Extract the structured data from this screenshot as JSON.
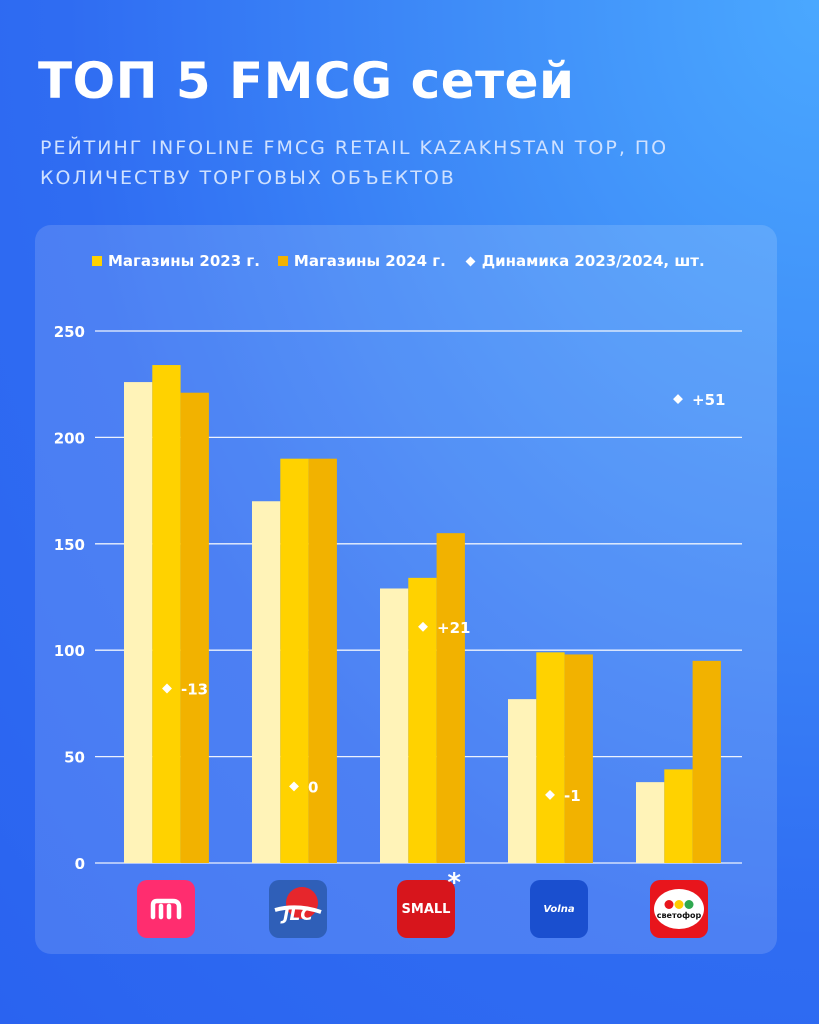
{
  "header": {
    "title": "ТОП 5 FMCG сетей",
    "subtitle": "РЕЙТИНГ INFOLINE FMCG RETAIL KAZAKHSTAN TOP, ПО КОЛИЧЕСТВУ ТОРГОВЫХ ОБЪЕКТОВ"
  },
  "colors": {
    "series_2023": "#fff3b8",
    "series_2024a": "#ffd200",
    "series_2024b": "#f2b200",
    "gridline": "#ffffff"
  },
  "chart_data": {
    "type": "bar",
    "categories": [
      "magnum",
      "JLC",
      "SMALL",
      "Volna",
      "светофор"
    ],
    "series": [
      {
        "name": "",
        "values": [
          226,
          170,
          129,
          77,
          38
        ]
      },
      {
        "name": "Магазины 2023 г.",
        "values": [
          234,
          190,
          134,
          99,
          44
        ]
      },
      {
        "name": "Магазины 2024 г.",
        "values": [
          221,
          190,
          155,
          98,
          95
        ]
      }
    ],
    "dynamics": {
      "name": "Динамика 2023/2024, шт.",
      "labels": [
        "-13",
        "0",
        "+21",
        "-1",
        "+51"
      ],
      "y": [
        82,
        36,
        111,
        32,
        218
      ]
    },
    "yticks": [
      0,
      50,
      100,
      150,
      200,
      250
    ],
    "ylim": [
      0,
      250
    ],
    "grid": true,
    "legend": "top"
  },
  "logos": [
    {
      "icon": "magnum-logo-icon",
      "text": "m",
      "bg": "#ff2d6f"
    },
    {
      "icon": "jlc-logo-icon",
      "text": "JLC",
      "bg": "#2f5fb8"
    },
    {
      "icon": "small-logo-icon",
      "text": "SMALL",
      "bg": "#d7151c",
      "mark": "*"
    },
    {
      "icon": "volna-logo-icon",
      "text": "Volna",
      "bg": "#1a4fcf"
    },
    {
      "icon": "svetofor-logo-icon",
      "text": "светофор",
      "bg": "#e8151c"
    }
  ]
}
